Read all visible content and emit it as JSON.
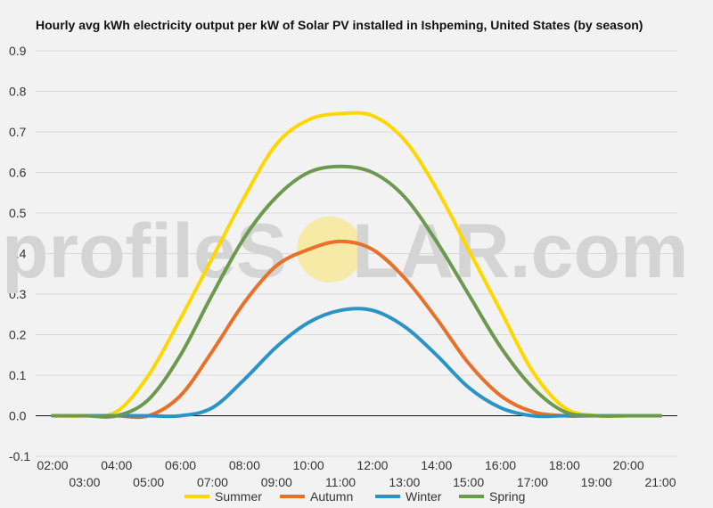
{
  "watermark": {
    "left": "profileS",
    "right": "LAR.com",
    "sun_color": "#f7e9a6"
  },
  "chart_data": {
    "type": "line",
    "title": "Hourly avg kWh electricity output per kW of Solar PV installed in Ishpeming, United States (by season)",
    "xlabel": "",
    "ylabel": "",
    "x": [
      "02:00",
      "03:00",
      "04:00",
      "05:00",
      "06:00",
      "07:00",
      "08:00",
      "09:00",
      "10:00",
      "11:00",
      "12:00",
      "13:00",
      "14:00",
      "15:00",
      "16:00",
      "17:00",
      "18:00",
      "19:00",
      "20:00",
      "21:00"
    ],
    "ylim": [
      -0.1,
      0.9
    ],
    "yticks": [
      "0.9",
      "0.8",
      "0.7",
      "0.6",
      "0.5",
      "0.4",
      "0.3",
      "0.2",
      "0.1",
      "0.0",
      "-0.1"
    ],
    "ytick_values": [
      0.9,
      0.8,
      0.7,
      0.6,
      0.5,
      0.4,
      0.3,
      0.2,
      0.1,
      0.0,
      -0.1
    ],
    "grid": true,
    "legend": "bottom",
    "series": [
      {
        "name": "Summer",
        "color": "#ffd700",
        "values": [
          0,
          0,
          0.01,
          0.1,
          0.24,
          0.39,
          0.54,
          0.67,
          0.73,
          0.745,
          0.74,
          0.68,
          0.56,
          0.41,
          0.26,
          0.11,
          0.02,
          0,
          0,
          0
        ]
      },
      {
        "name": "Autumn",
        "color": "#e8712a",
        "values": [
          0,
          0,
          0,
          0,
          0.05,
          0.16,
          0.28,
          0.37,
          0.41,
          0.43,
          0.41,
          0.34,
          0.24,
          0.13,
          0.05,
          0.01,
          0,
          0,
          0,
          0
        ]
      },
      {
        "name": "Winter",
        "color": "#2b94c6",
        "values": [
          0,
          0,
          0,
          0,
          0,
          0.02,
          0.09,
          0.17,
          0.23,
          0.26,
          0.26,
          0.22,
          0.15,
          0.07,
          0.02,
          0,
          0,
          0,
          0,
          0
        ]
      },
      {
        "name": "Spring",
        "color": "#6b9a4f",
        "values": [
          0,
          0,
          0,
          0.04,
          0.15,
          0.3,
          0.44,
          0.54,
          0.6,
          0.615,
          0.6,
          0.54,
          0.43,
          0.3,
          0.17,
          0.07,
          0.01,
          0,
          0,
          0
        ]
      }
    ]
  }
}
